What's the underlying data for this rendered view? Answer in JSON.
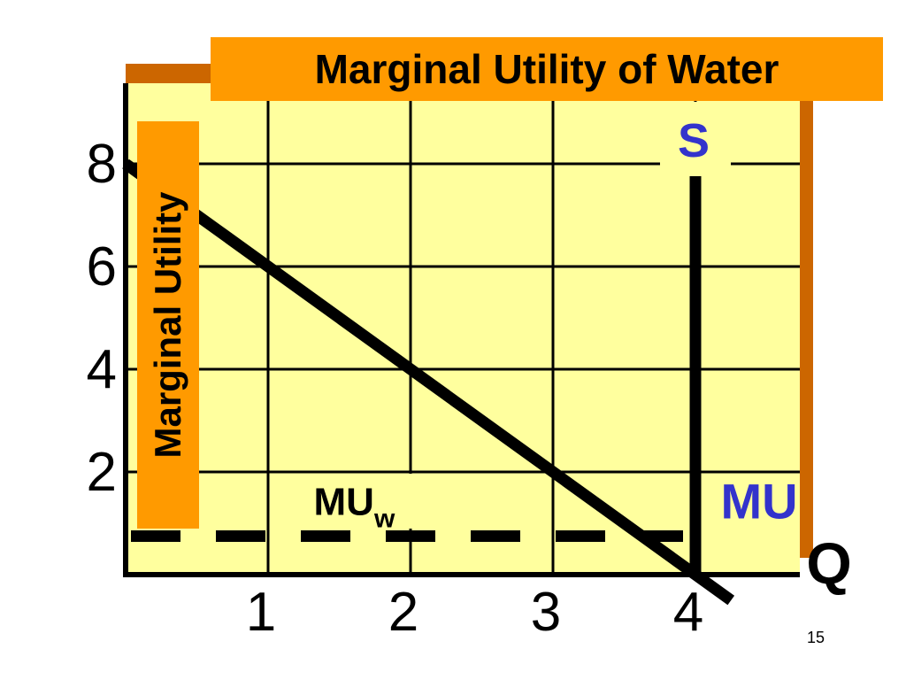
{
  "title": "Marginal Utility of Water",
  "slide_number": "15",
  "colors": {
    "plot_background": "#ffff9e",
    "title_box": "#ff9a00",
    "ylabel_box": "#ff9a00",
    "frame_shadow": "#cc6600",
    "axis": "#000000",
    "label_blue": "#3333cc"
  },
  "chart_data": {
    "type": "line",
    "title": "Marginal Utility of Water",
    "xlabel": "Q",
    "ylabel": "Marginal Utility",
    "xlim": [
      0,
      4.9
    ],
    "ylim": [
      0,
      9
    ],
    "x_ticks": [
      1,
      2,
      3,
      4
    ],
    "y_ticks": [
      2,
      4,
      6,
      8
    ],
    "x_tick_labels": [
      "1",
      "2",
      "3",
      "4"
    ],
    "y_tick_labels": [
      "2",
      "4",
      "6",
      "8"
    ],
    "grid": true,
    "series": [
      {
        "name": "MU",
        "x": [
          0,
          4.25
        ],
        "y": [
          8,
          -0.5
        ]
      },
      {
        "name": "S",
        "x": [
          4,
          4
        ],
        "y": [
          8,
          0
        ]
      }
    ],
    "reference_lines": [
      {
        "name": "MU_w",
        "type": "horizontal-dashed",
        "y": 0.75,
        "x_range": [
          0,
          4
        ]
      }
    ],
    "annotations": {
      "supply_label": "S",
      "mu_label": "MU",
      "muw_main": "MU",
      "muw_sub": "w"
    }
  }
}
